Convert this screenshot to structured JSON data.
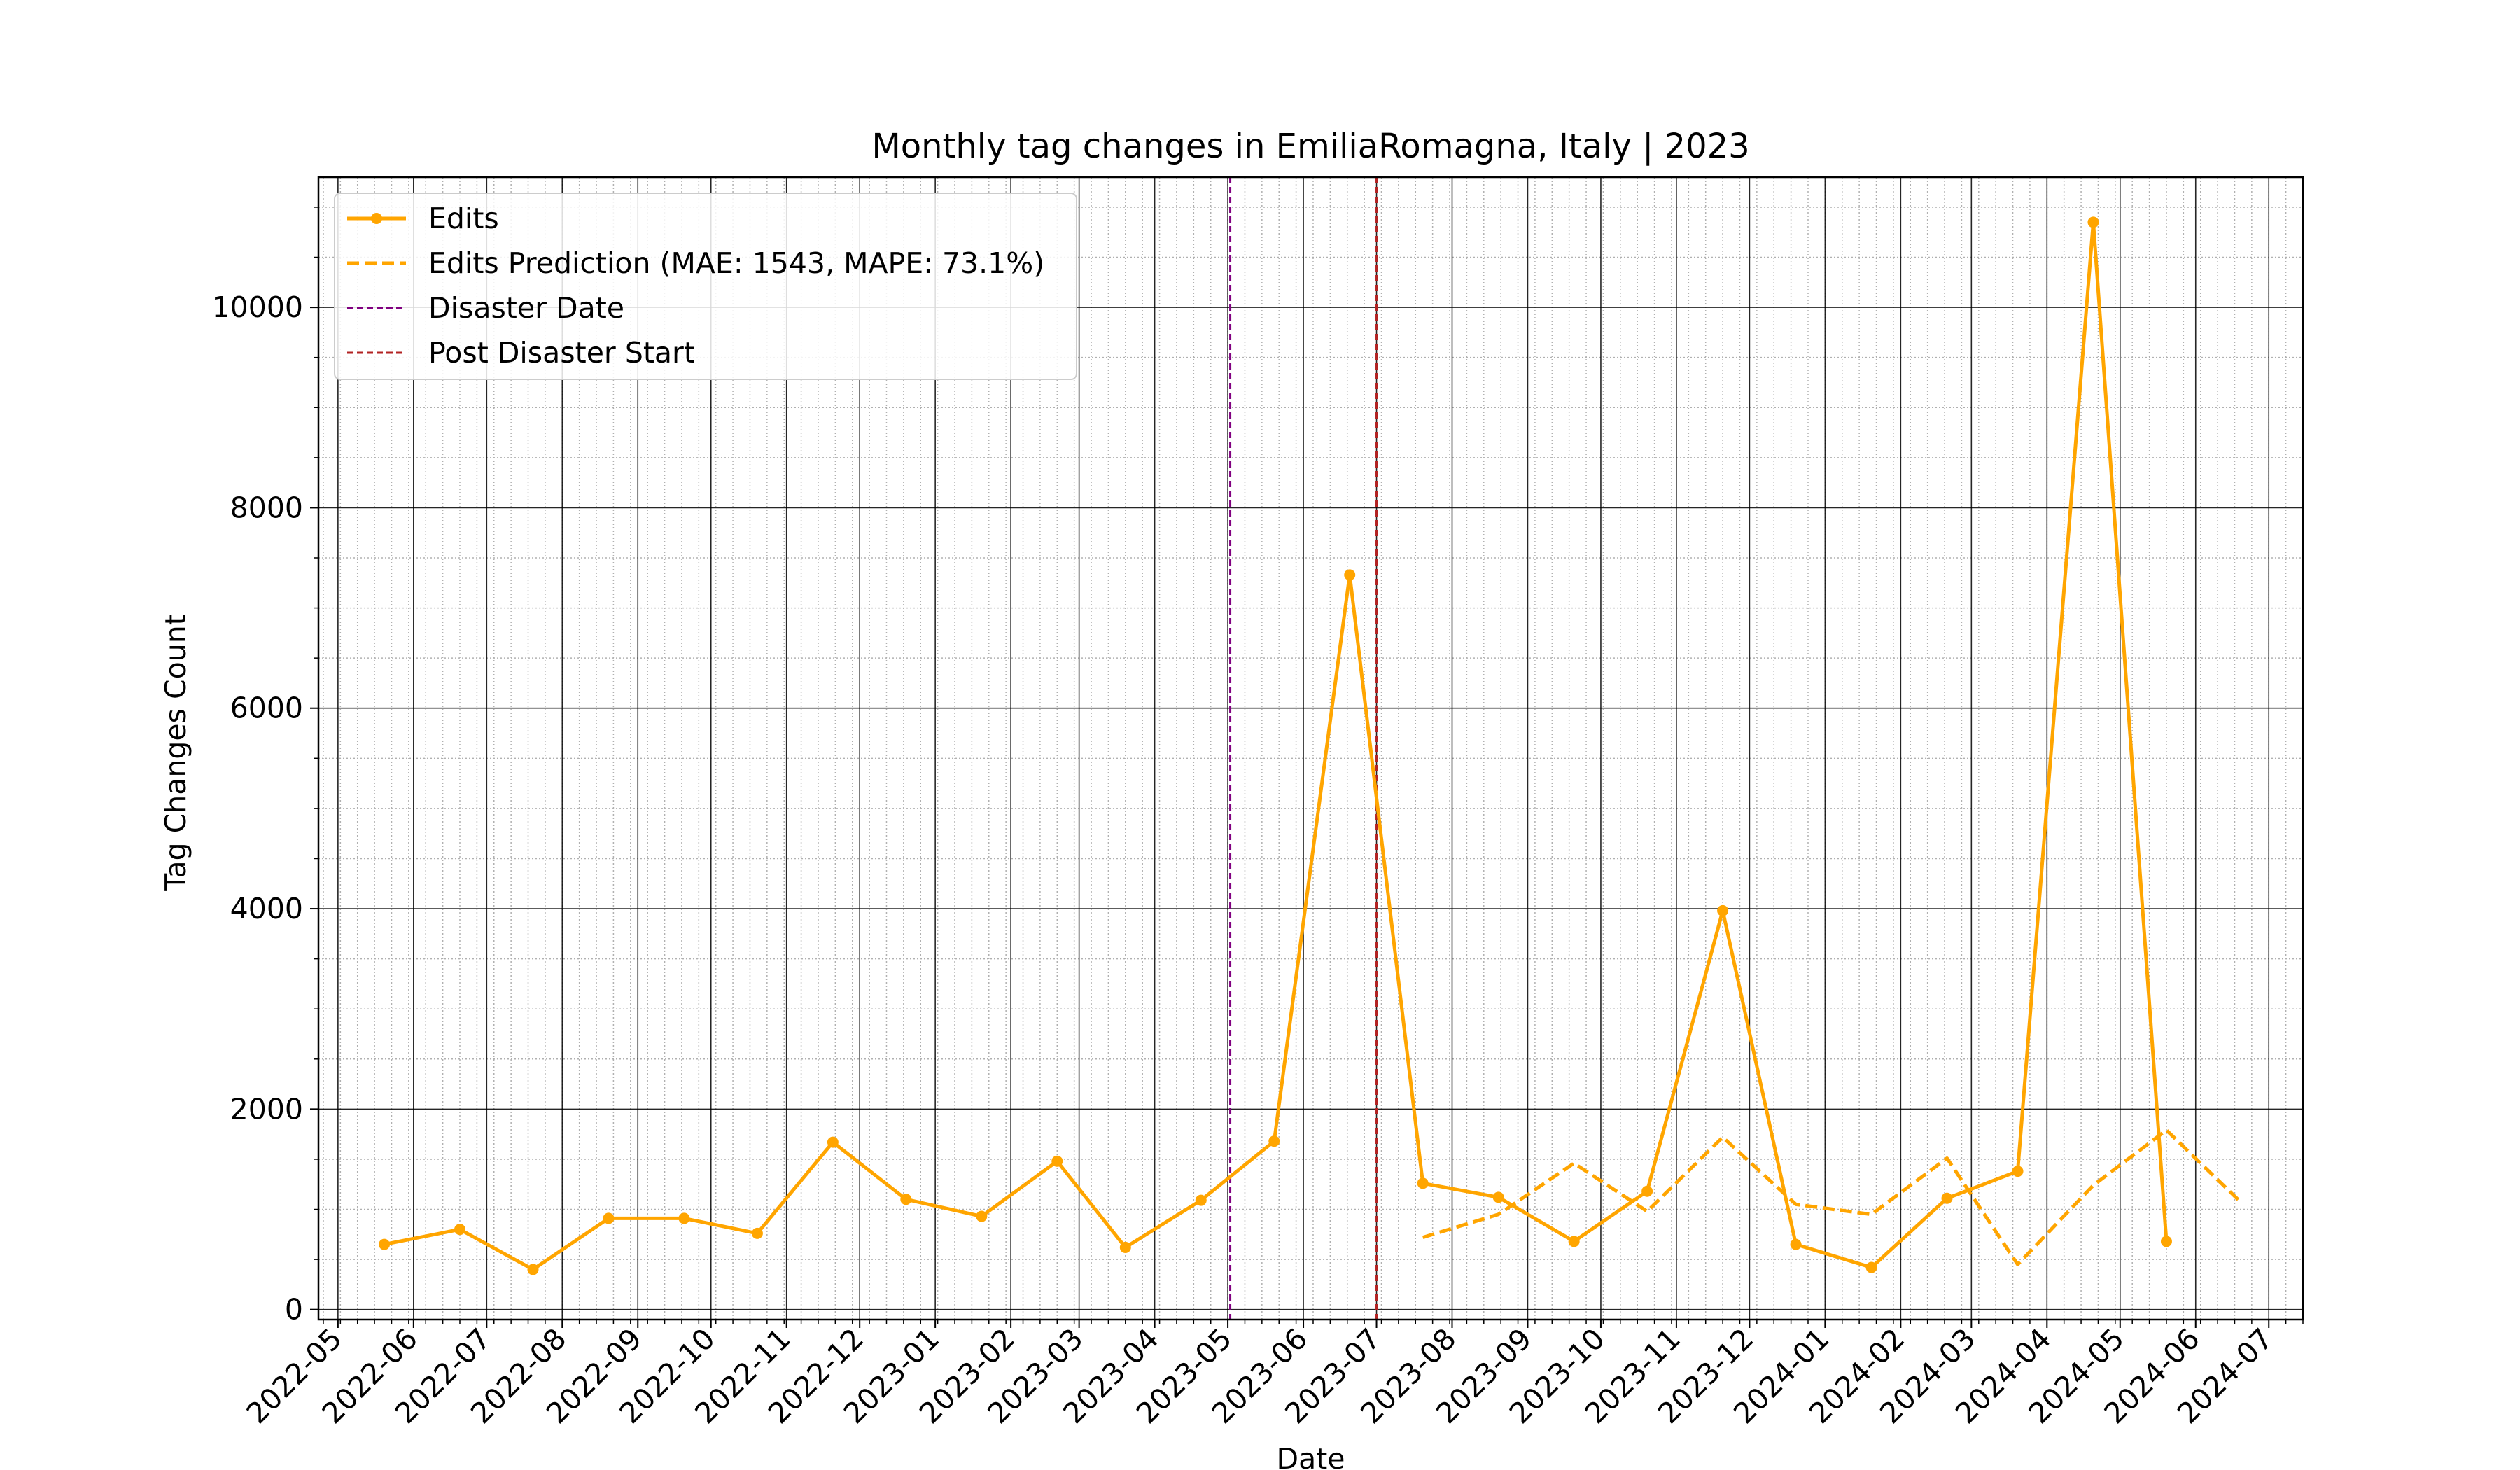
{
  "chart_data": {
    "type": "line",
    "title": "Monthly tag changes in EmiliaRomagna, Italy | 2023",
    "xlabel": "Date",
    "ylabel": "Tag Changes Count",
    "ylim": [
      -100,
      11300
    ],
    "xlim": [
      "2022-04-23",
      "2024-07-15"
    ],
    "y_ticks": [
      0,
      2000,
      4000,
      6000,
      8000,
      10000
    ],
    "x_ticks": [
      "2022-05",
      "2022-06",
      "2022-07",
      "2022-08",
      "2022-09",
      "2022-10",
      "2022-11",
      "2022-12",
      "2023-01",
      "2023-02",
      "2023-03",
      "2023-04",
      "2023-05",
      "2023-06",
      "2023-07",
      "2023-08",
      "2023-09",
      "2023-10",
      "2023-11",
      "2023-12",
      "2024-01",
      "2024-02",
      "2024-03",
      "2024-04",
      "2024-05",
      "2024-06",
      "2024-07"
    ],
    "grid": "major solid, minor dotted",
    "legend_position": "top-left",
    "series": [
      {
        "name": "Edits",
        "style": "solid-with-markers",
        "color": "#FFA500",
        "x": [
          "2022-05-20",
          "2022-06-20",
          "2022-07-20",
          "2022-08-20",
          "2022-09-20",
          "2022-10-20",
          "2022-11-20",
          "2022-12-20",
          "2023-01-20",
          "2023-02-20",
          "2023-03-20",
          "2023-04-20",
          "2023-05-20",
          "2023-06-20",
          "2023-07-20",
          "2023-08-20",
          "2023-09-20",
          "2023-10-20",
          "2023-11-20",
          "2023-12-20",
          "2024-01-20",
          "2024-02-20",
          "2024-03-20",
          "2024-04-20",
          "2024-05-20"
        ],
        "y": [
          650,
          800,
          400,
          910,
          910,
          760,
          1670,
          1100,
          930,
          1480,
          620,
          1090,
          1680,
          7330,
          1260,
          1120,
          680,
          1180,
          3980,
          650,
          420,
          1110,
          1380,
          10850,
          680
        ]
      },
      {
        "name": "Edits Prediction (MAE: 1543, MAPE: 73.1%)",
        "style": "dashed",
        "color": "#FFA500",
        "x": [
          "2023-07-20",
          "2023-08-20",
          "2023-09-20",
          "2023-10-20",
          "2023-11-20",
          "2023-12-20",
          "2024-01-20",
          "2024-02-20",
          "2024-03-20",
          "2024-04-20",
          "2024-05-20",
          "2024-06-20"
        ],
        "y": [
          720,
          950,
          1460,
          980,
          1720,
          1050,
          950,
          1510,
          450,
          1240,
          1790,
          1060
        ]
      }
    ],
    "vlines": [
      {
        "name": "Disaster Date",
        "x": "2023-05-02",
        "color": "#800080",
        "style": "dashed"
      },
      {
        "name": "Post Disaster Start",
        "x": "2023-07-01",
        "color": "#B22222",
        "style": "dashed"
      }
    ]
  }
}
